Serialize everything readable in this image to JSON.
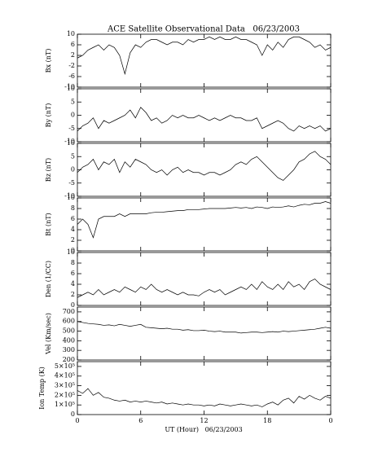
{
  "chart_data": {
    "type": "line",
    "title": "ACE Satellite Observational Data   06/23/2003",
    "xlabel": "UT (Hour)   06/23/2003",
    "xlim": [
      0,
      24
    ],
    "xticks": [
      0,
      6,
      12,
      18,
      {
        "value": 24,
        "label": "0"
      }
    ],
    "x": [
      0,
      0.5,
      1,
      1.5,
      2,
      2.5,
      3,
      3.5,
      4,
      4.5,
      5,
      5.5,
      6,
      6.5,
      7,
      7.5,
      8,
      8.5,
      9,
      9.5,
      10,
      10.5,
      11,
      11.5,
      12,
      12.5,
      13,
      13.5,
      14,
      14.5,
      15,
      15.5,
      16,
      16.5,
      17,
      17.5,
      18,
      18.5,
      19,
      19.5,
      20,
      20.5,
      21,
      21.5,
      22,
      22.5,
      23,
      23.5,
      24
    ],
    "color": "#000000",
    "panels": [
      {
        "ylabel": "Bx (nT)",
        "ylim": [
          -10,
          10
        ],
        "yticks": [
          -10,
          -6,
          -2,
          2,
          6,
          10
        ],
        "values": [
          1,
          2,
          4,
          5,
          6,
          4,
          6,
          5,
          2,
          -5,
          3,
          6,
          5,
          7,
          8,
          8,
          7,
          6,
          7,
          7,
          6,
          8,
          7,
          8,
          8,
          9,
          8,
          9,
          8,
          8,
          9,
          8,
          8,
          7,
          6,
          2,
          6,
          4,
          7,
          5,
          8,
          9,
          9,
          8,
          7,
          5,
          6,
          4,
          5
        ]
      },
      {
        "ylabel": "By (nT)",
        "ylim": [
          -10,
          10
        ],
        "yticks": [
          -10,
          -5,
          0,
          5,
          10
        ],
        "values": [
          -6,
          -4,
          -3,
          -1,
          -5,
          -2,
          -3,
          -2,
          -1,
          0,
          2,
          -1,
          3,
          1,
          -2,
          -1,
          -3,
          -2,
          0,
          -1,
          0,
          -1,
          -1,
          0,
          -1,
          -2,
          -1,
          -2,
          -1,
          0,
          -1,
          -1,
          -2,
          -2,
          -1,
          -5,
          -4,
          -3,
          -2,
          -3,
          -5,
          -6,
          -4,
          -5,
          -4,
          -5,
          -4,
          -6,
          -5
        ]
      },
      {
        "ylabel": "Bz (nT)",
        "ylim": [
          -10,
          10
        ],
        "yticks": [
          -10,
          -5,
          0,
          5,
          10
        ],
        "values": [
          -1,
          1,
          2,
          4,
          0,
          3,
          2,
          4,
          -1,
          3,
          1,
          4,
          3,
          2,
          0,
          -1,
          0,
          -2,
          0,
          1,
          -1,
          0,
          -1,
          -1,
          -2,
          -1,
          -1,
          -2,
          -1,
          0,
          2,
          3,
          2,
          4,
          5,
          3,
          1,
          -1,
          -3,
          -4,
          -2,
          0,
          3,
          4,
          6,
          7,
          5,
          4,
          2
        ]
      },
      {
        "ylabel": "Bt (nT)",
        "ylim": [
          0,
          10
        ],
        "yticks": [
          0,
          2,
          4,
          6,
          8,
          10
        ],
        "values": [
          5,
          6,
          5,
          2.5,
          6,
          6.5,
          6.5,
          6.5,
          7,
          6.5,
          7,
          7,
          7,
          7,
          7.2,
          7.3,
          7.3,
          7.4,
          7.5,
          7.6,
          7.6,
          7.8,
          7.8,
          7.8,
          7.9,
          8,
          8,
          8,
          8,
          8.1,
          8.2,
          8.1,
          8.2,
          8,
          8.3,
          8.2,
          8,
          8.3,
          8.2,
          8.3,
          8.5,
          8.3,
          8.6,
          8.8,
          8.7,
          9,
          9,
          9.3,
          9
        ]
      },
      {
        "ylabel": "Den (1/CC)",
        "ylim": [
          0,
          10
        ],
        "yticks": [
          0,
          2,
          4,
          6,
          8,
          10
        ],
        "values": [
          1.5,
          2,
          2.5,
          2,
          3,
          2,
          2.5,
          3,
          2.5,
          3.5,
          3,
          2.5,
          3.5,
          3,
          4,
          3,
          2.5,
          3,
          2.5,
          2,
          2.5,
          2,
          2,
          1.8,
          2.5,
          3,
          2.5,
          3,
          2,
          2.5,
          3,
          3.5,
          3,
          4,
          3,
          4.5,
          3.5,
          3,
          4,
          3,
          4.5,
          3.5,
          4,
          3,
          4.5,
          5,
          4,
          3.5,
          3
        ]
      },
      {
        "ylabel": "Vel (Km/sec)",
        "ylim": [
          200,
          750
        ],
        "yticks": [
          200,
          300,
          400,
          500,
          600,
          700
        ],
        "values": [
          600,
          590,
          580,
          575,
          570,
          560,
          565,
          555,
          570,
          560,
          550,
          560,
          570,
          540,
          535,
          530,
          525,
          530,
          520,
          520,
          510,
          515,
          505,
          505,
          510,
          500,
          495,
          500,
          490,
          490,
          490,
          480,
          485,
          490,
          490,
          485,
          490,
          495,
          490,
          500,
          495,
          500,
          505,
          510,
          515,
          520,
          530,
          540,
          530
        ]
      },
      {
        "ylabel": "Ion Temp (K)",
        "ylim": [
          0,
          550000
        ],
        "yticks": [
          0,
          {
            "value": 100000,
            "label": "1×10⁵"
          },
          {
            "value": 200000,
            "label": "2×10⁵"
          },
          {
            "value": 300000,
            "label": "3×10⁵"
          },
          {
            "value": 400000,
            "label": "4×10⁵"
          },
          {
            "value": 500000,
            "label": "5×10⁵"
          }
        ],
        "values": [
          250000,
          220000,
          270000,
          200000,
          230000,
          180000,
          170000,
          150000,
          140000,
          150000,
          130000,
          140000,
          130000,
          140000,
          130000,
          120000,
          130000,
          110000,
          120000,
          110000,
          100000,
          110000,
          100000,
          100000,
          90000,
          100000,
          90000,
          110000,
          100000,
          90000,
          100000,
          110000,
          100000,
          90000,
          100000,
          80000,
          110000,
          130000,
          100000,
          150000,
          170000,
          120000,
          190000,
          160000,
          200000,
          170000,
          150000,
          190000,
          170000
        ]
      }
    ]
  }
}
